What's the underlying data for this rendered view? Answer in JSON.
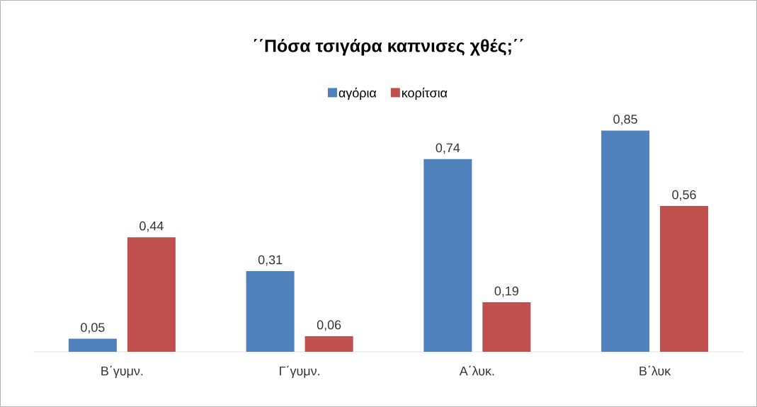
{
  "chart_data": {
    "type": "bar",
    "title": "΄΄Πόσα τσιγάρα καπνισες χθές;΄΄",
    "categories": [
      "Β΄γυμν.",
      "Γ΄γυμν.",
      "Α΄λυκ.",
      "Β΄λυκ"
    ],
    "series": [
      {
        "name": "αγόρια",
        "color": "#4f81bd",
        "values": [
          0.05,
          0.31,
          0.74,
          0.85
        ],
        "value_labels": [
          "0,05",
          "0,31",
          "0,74",
          "0,85"
        ]
      },
      {
        "name": "κορίτσια",
        "color": "#c0504d",
        "values": [
          0.44,
          0.06,
          0.19,
          0.56
        ],
        "value_labels": [
          "0,44",
          "0,06",
          "0,19",
          "0,56"
        ]
      }
    ],
    "legend": "top"
  }
}
